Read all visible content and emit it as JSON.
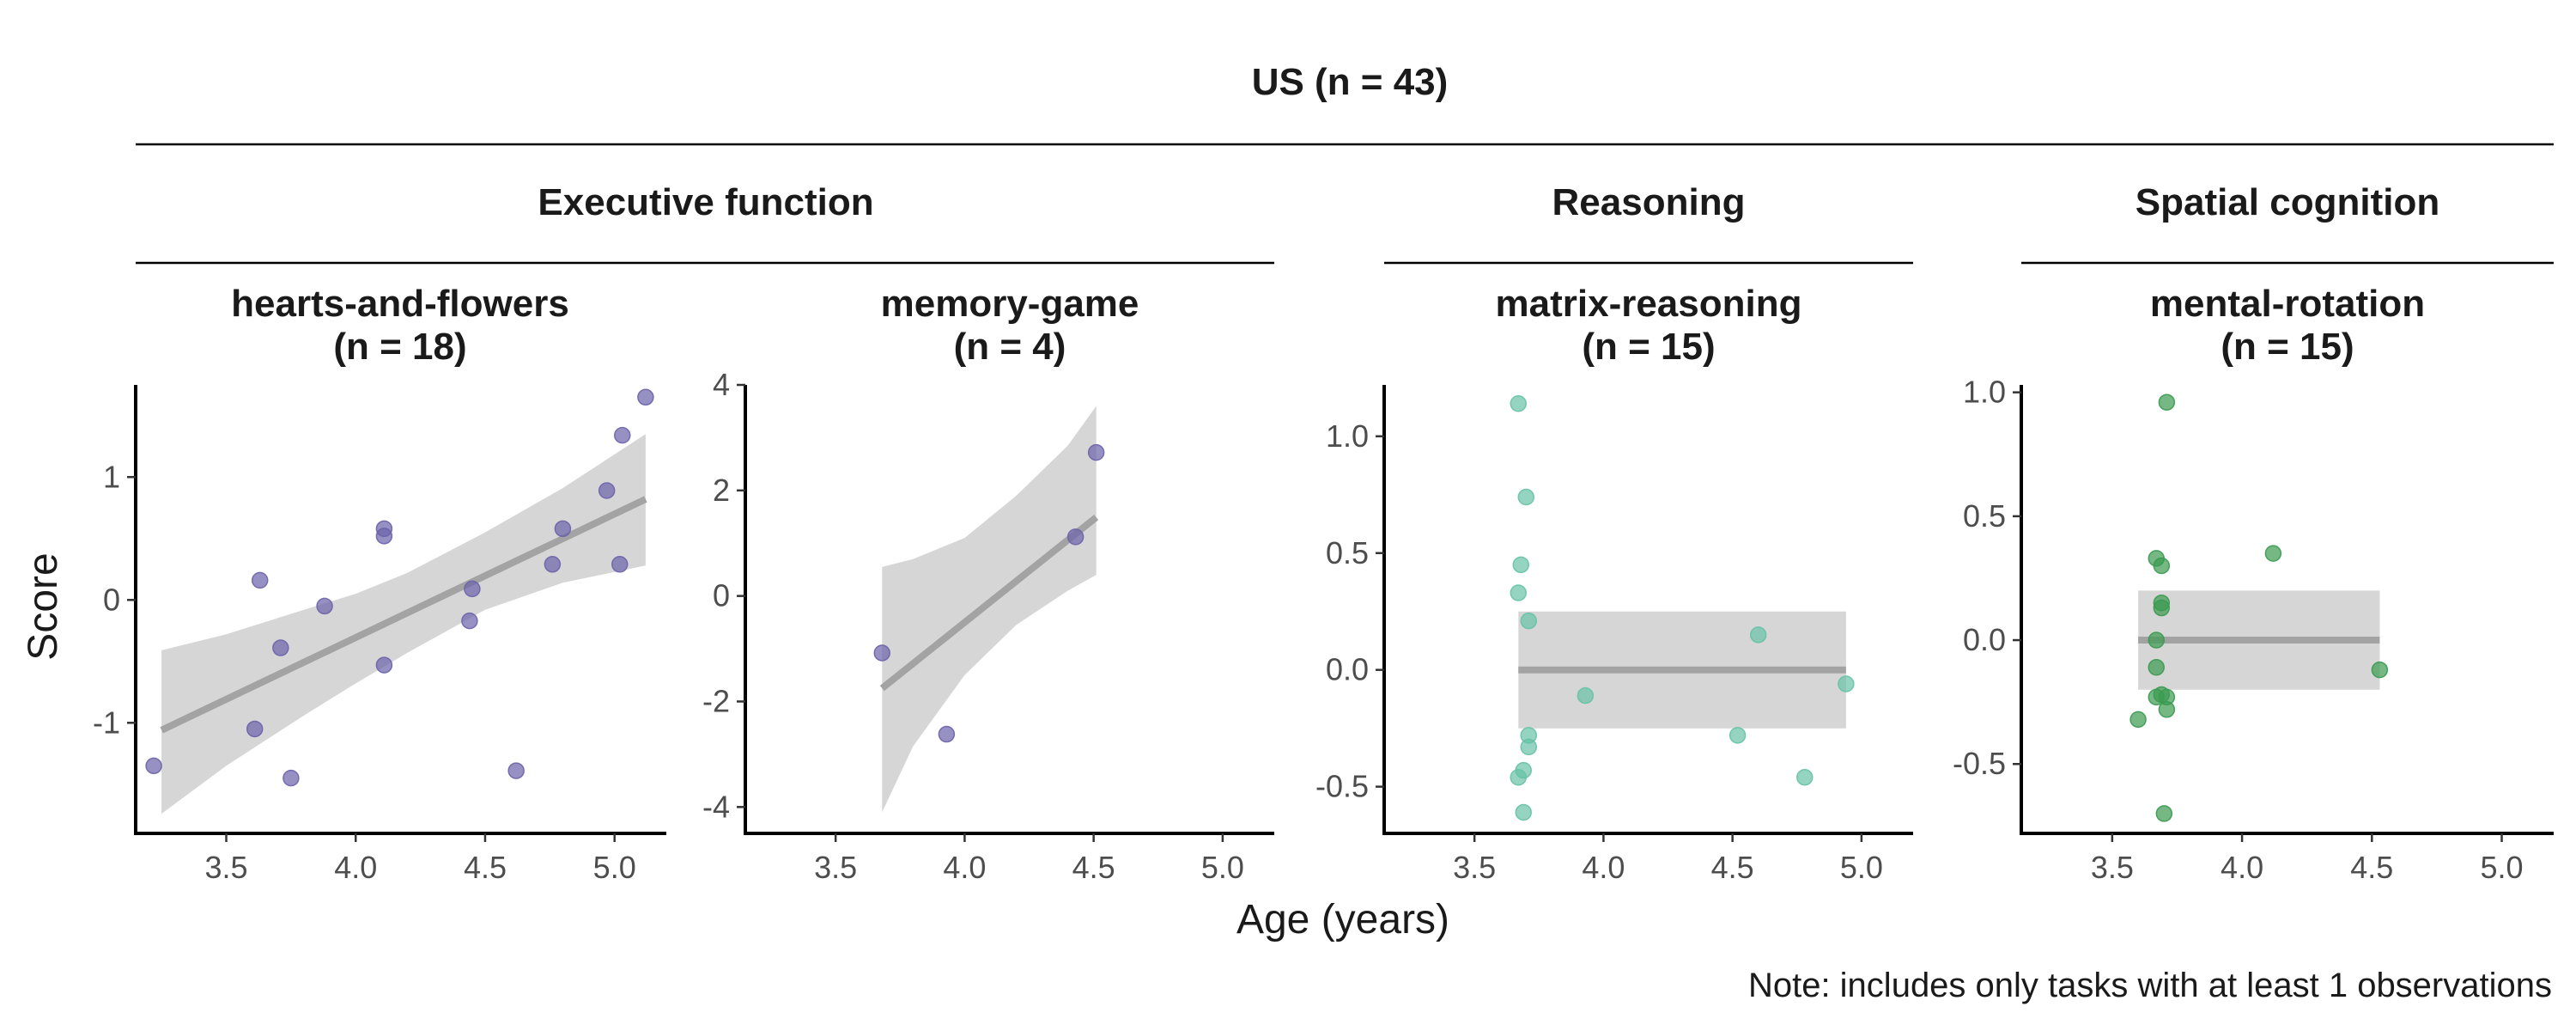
{
  "figure": {
    "title": "US (n = 43)",
    "xlabel": "Age (years)",
    "ylabel": "Score",
    "note": "Note: includes only tasks with at least 1 observations"
  },
  "groups": [
    {
      "label": "Executive function"
    },
    {
      "label": "Reasoning"
    },
    {
      "label": "Spatial cognition"
    }
  ],
  "colors": {
    "hearts-and-flowers": "#6b63aa",
    "memory-game": "#6b63aa",
    "matrix-reasoning": "#66c2a5",
    "mental-rotation": "#3a9a50",
    "trend_line": "#a3a3a3",
    "ci_band": "#d6d6d6",
    "axis": "#000000"
  },
  "chart_data": [
    {
      "type": "scatter",
      "group": "Executive function",
      "title": "hearts-and-flowers",
      "subtitle": "(n = 18)",
      "xlim": [
        3.15,
        5.2
      ],
      "ylim": [
        -1.9,
        1.75
      ],
      "xticks": [
        3.5,
        4.0,
        4.5,
        5.0
      ],
      "xtick_labels": [
        "3.5",
        "4.0",
        "4.5",
        "5.0"
      ],
      "yticks": [
        -1,
        0,
        1
      ],
      "ytick_labels": [
        "-1",
        "0",
        "1"
      ],
      "points": [
        [
          3.22,
          -1.35
        ],
        [
          3.61,
          -1.05
        ],
        [
          3.63,
          0.16
        ],
        [
          3.71,
          -0.39
        ],
        [
          3.75,
          -1.45
        ],
        [
          3.88,
          -0.05
        ],
        [
          4.11,
          0.58
        ],
        [
          4.11,
          0.52
        ],
        [
          4.11,
          -0.53
        ],
        [
          4.45,
          0.09
        ],
        [
          4.44,
          -0.17
        ],
        [
          4.62,
          -1.39
        ],
        [
          4.76,
          0.29
        ],
        [
          4.8,
          0.58
        ],
        [
          4.97,
          0.89
        ],
        [
          5.02,
          0.29
        ],
        [
          5.03,
          1.34
        ],
        [
          5.12,
          1.65
        ]
      ],
      "trend": [
        [
          3.25,
          -1.06
        ],
        [
          5.12,
          0.82
        ]
      ],
      "ci_upper": [
        [
          3.25,
          -0.41
        ],
        [
          3.5,
          -0.28
        ],
        [
          3.8,
          -0.08
        ],
        [
          4.0,
          0.05
        ],
        [
          4.2,
          0.22
        ],
        [
          4.5,
          0.55
        ],
        [
          4.8,
          0.91
        ],
        [
          5.12,
          1.35
        ]
      ],
      "ci_lower": [
        [
          3.25,
          -1.74
        ],
        [
          3.5,
          -1.35
        ],
        [
          3.8,
          -0.94
        ],
        [
          4.0,
          -0.68
        ],
        [
          4.2,
          -0.43
        ],
        [
          4.5,
          -0.08
        ],
        [
          4.8,
          0.14
        ],
        [
          5.12,
          0.28
        ]
      ]
    },
    {
      "type": "scatter",
      "group": "Executive function",
      "title": "memory-game",
      "subtitle": "(n = 4)",
      "xlim": [
        3.15,
        5.2
      ],
      "ylim": [
        -4.5,
        4.0
      ],
      "xticks": [
        3.5,
        4.0,
        4.5,
        5.0
      ],
      "xtick_labels": [
        "3.5",
        "4.0",
        "4.5",
        "5.0"
      ],
      "yticks": [
        -4,
        -2,
        0,
        2,
        4
      ],
      "ytick_labels": [
        "-4",
        "-2",
        "0",
        "2",
        "4"
      ],
      "points": [
        [
          3.68,
          -1.08
        ],
        [
          3.93,
          -2.62
        ],
        [
          4.43,
          1.12
        ],
        [
          4.51,
          2.72
        ]
      ],
      "trend": [
        [
          3.68,
          -1.75
        ],
        [
          4.51,
          1.49
        ]
      ],
      "ci_upper": [
        [
          3.68,
          0.55
        ],
        [
          3.8,
          0.7
        ],
        [
          4.0,
          1.1
        ],
        [
          4.2,
          1.9
        ],
        [
          4.4,
          2.85
        ],
        [
          4.51,
          3.6
        ]
      ],
      "ci_lower": [
        [
          3.68,
          -4.1
        ],
        [
          3.8,
          -2.85
        ],
        [
          4.0,
          -1.5
        ],
        [
          4.2,
          -0.55
        ],
        [
          4.4,
          0.1
        ],
        [
          4.51,
          0.4
        ]
      ]
    },
    {
      "type": "scatter",
      "group": "Reasoning",
      "title": "matrix-reasoning",
      "subtitle": "(n = 15)",
      "xlim": [
        3.15,
        5.2
      ],
      "ylim": [
        -0.7,
        1.22
      ],
      "xticks": [
        3.5,
        4.0,
        4.5,
        5.0
      ],
      "xtick_labels": [
        "3.5",
        "4.0",
        "4.5",
        "5.0"
      ],
      "yticks": [
        -0.5,
        0.0,
        0.5,
        1.0
      ],
      "ytick_labels": [
        "-0.5",
        "0.0",
        "0.5",
        "1.0"
      ],
      "points": [
        [
          3.67,
          1.14
        ],
        [
          3.68,
          0.45
        ],
        [
          3.67,
          0.33
        ],
        [
          3.7,
          0.74
        ],
        [
          3.71,
          0.21
        ],
        [
          3.71,
          -0.28
        ],
        [
          3.71,
          -0.33
        ],
        [
          3.69,
          -0.43
        ],
        [
          3.67,
          -0.46
        ],
        [
          3.69,
          -0.61
        ],
        [
          3.93,
          -0.11
        ],
        [
          4.52,
          -0.28
        ],
        [
          4.6,
          0.15
        ],
        [
          4.78,
          -0.46
        ],
        [
          4.94,
          -0.06
        ]
      ],
      "trend": [
        [
          3.67,
          0.0
        ],
        [
          4.94,
          0.0
        ]
      ],
      "ci_upper": [
        [
          3.67,
          0.25
        ],
        [
          4.94,
          0.25
        ]
      ],
      "ci_lower": [
        [
          3.67,
          -0.25
        ],
        [
          4.94,
          -0.25
        ]
      ]
    },
    {
      "type": "scatter",
      "group": "Spatial cognition",
      "title": "mental-rotation",
      "subtitle": "(n = 15)",
      "xlim": [
        3.15,
        5.2
      ],
      "ylim": [
        -0.78,
        1.03
      ],
      "xticks": [
        3.5,
        4.0,
        4.5,
        5.0
      ],
      "xtick_labels": [
        "3.5",
        "4.0",
        "4.5",
        "5.0"
      ],
      "yticks": [
        -0.5,
        0.0,
        0.5,
        1.0
      ],
      "ytick_labels": [
        "-0.5",
        "0.0",
        "0.5",
        "1.0"
      ],
      "points": [
        [
          3.71,
          0.96
        ],
        [
          3.67,
          0.33
        ],
        [
          3.69,
          0.3
        ],
        [
          3.69,
          0.15
        ],
        [
          3.69,
          0.13
        ],
        [
          3.67,
          0.0
        ],
        [
          3.67,
          -0.11
        ],
        [
          3.69,
          -0.22
        ],
        [
          3.67,
          -0.23
        ],
        [
          3.71,
          -0.23
        ],
        [
          3.71,
          -0.28
        ],
        [
          3.6,
          -0.32
        ],
        [
          3.7,
          -0.7
        ],
        [
          4.12,
          0.35
        ],
        [
          4.53,
          -0.12
        ]
      ],
      "trend": [
        [
          3.6,
          0.0
        ],
        [
          4.53,
          0.0
        ]
      ],
      "ci_upper": [
        [
          3.6,
          0.2
        ],
        [
          4.53,
          0.2
        ]
      ],
      "ci_lower": [
        [
          3.6,
          -0.2
        ],
        [
          4.53,
          -0.2
        ]
      ]
    }
  ]
}
